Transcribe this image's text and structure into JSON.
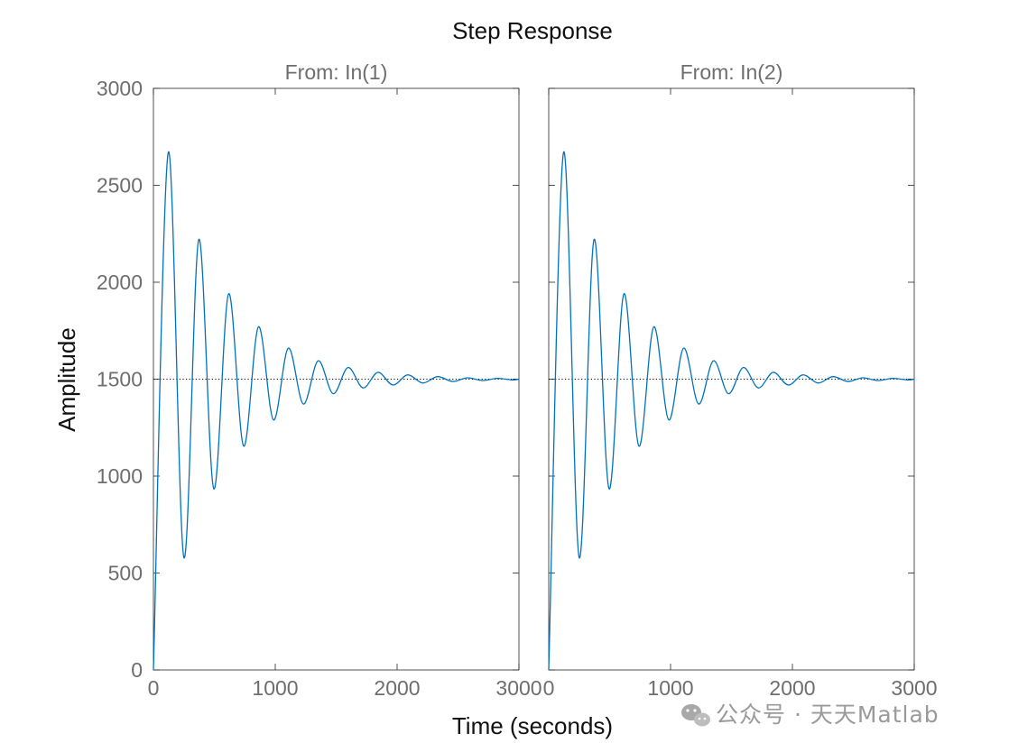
{
  "chart_data": {
    "type": "line",
    "title": "Step Response",
    "xlabel": "Time (seconds)",
    "ylabel": "Amplitude",
    "xlim": [
      0,
      3000
    ],
    "ylim": [
      0,
      3000
    ],
    "xticks": [
      "0",
      "1000",
      "2000",
      "3000"
    ],
    "yticks": [
      "0",
      "500",
      "1000",
      "1500",
      "2000",
      "2500",
      "3000"
    ],
    "grid": false,
    "line_color": "#0072bd",
    "steady_state_value": 1500,
    "panels": [
      {
        "title": "From: In(1)",
        "x": [
          0,
          122,
          250,
          372,
          495,
          617,
          740,
          862,
          985,
          1107,
          1230,
          1352,
          1475,
          1597,
          1720,
          1842,
          1965,
          2087,
          2210,
          2332,
          2455,
          2577,
          2700,
          2822,
          2945,
          3000
        ],
        "y": [
          0,
          2670,
          580,
          2220,
          935,
          1940,
          1155,
          1770,
          1290,
          1660,
          1372,
          1595,
          1425,
          1560,
          1455,
          1535,
          1470,
          1522,
          1480,
          1513,
          1488,
          1507,
          1493,
          1504,
          1496,
          1500
        ]
      },
      {
        "title": "From: In(2)",
        "x": [
          0,
          122,
          250,
          372,
          495,
          617,
          740,
          862,
          985,
          1107,
          1230,
          1352,
          1475,
          1597,
          1720,
          1842,
          1965,
          2087,
          2210,
          2332,
          2455,
          2577,
          2700,
          2822,
          2945,
          3000
        ],
        "y": [
          0,
          2670,
          580,
          2220,
          935,
          1940,
          1155,
          1770,
          1290,
          1660,
          1372,
          1595,
          1425,
          1560,
          1455,
          1535,
          1470,
          1522,
          1480,
          1513,
          1488,
          1507,
          1493,
          1504,
          1496,
          1500
        ]
      }
    ]
  },
  "watermark": {
    "text": "公众号 · 天天Matlab",
    "icon": "wechat-icon"
  }
}
